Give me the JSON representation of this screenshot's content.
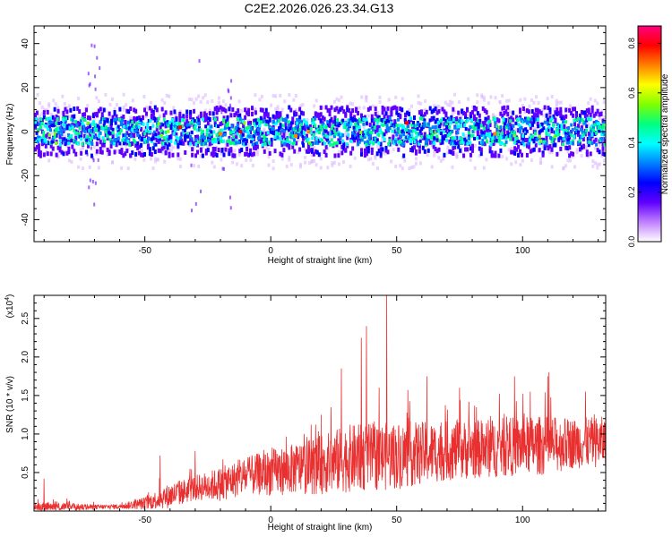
{
  "title": "C2E2.2026.026.23.34.G13",
  "chart_data": [
    {
      "type": "heatmap",
      "xlabel": "Height of straight line (km)",
      "ylabel": "Frequency (Hz)",
      "xlim": [
        -94,
        133
      ],
      "ylim": [
        -50,
        48
      ],
      "xticks": [
        -50,
        0,
        50,
        100
      ],
      "yticks": [
        -40,
        -20,
        0,
        20,
        40
      ],
      "colorbar": {
        "label": "Normalized spectral amplitude",
        "range": [
          0.0,
          0.87
        ],
        "ticks": [
          "0.0",
          "0.2",
          "0.4",
          "0.6",
          "0.8"
        ],
        "colors": [
          "#ffffff",
          "#c080ff",
          "#6000ff",
          "#0000ff",
          "#0080ff",
          "#00ffff",
          "#00ff80",
          "#80ff00",
          "#ffff00",
          "#ff8000",
          "#ff0000",
          "#ff0080"
        ]
      },
      "band": {
        "center_hz": 0,
        "core_halfwidth_hz": 6,
        "outer_halfwidth_hz": 13,
        "peaks": [
          {
            "x": -36,
            "y": 2,
            "value": 0.8
          },
          {
            "x": -20,
            "y": -1,
            "value": 0.7
          },
          {
            "x": -12,
            "y": 0,
            "value": 0.8
          },
          {
            "x": 10,
            "y": -2,
            "value": 0.7
          },
          {
            "x": 15,
            "y": 0,
            "value": 0.75
          },
          {
            "x": 54,
            "y": 4,
            "value": 0.8
          },
          {
            "x": 89,
            "y": -1,
            "value": 0.7
          }
        ]
      }
    },
    {
      "type": "line",
      "xlabel": "Height of straight line (km)",
      "ylabel": "SNR (10 * v/v)",
      "yscale_label": "(x10",
      "yscale_exp": "4",
      "xlim": [
        -94,
        133
      ],
      "ylim": [
        0,
        2.8
      ],
      "xticks": [
        -50,
        0,
        50,
        100
      ],
      "yticks": [
        "0.5",
        "1.0",
        "1.5",
        "2.0",
        "2.5"
      ],
      "color": "#e83030",
      "series": [
        {
          "x": [
            -94,
            -80,
            -70,
            -60,
            -50,
            -40,
            -30,
            -20,
            -10,
            0,
            10,
            20,
            30,
            40,
            50,
            60,
            70,
            80,
            90,
            100,
            110,
            120,
            133
          ],
          "baseline": [
            0.05,
            0.05,
            0.05,
            0.06,
            0.1,
            0.2,
            0.3,
            0.35,
            0.45,
            0.5,
            0.55,
            0.6,
            0.68,
            0.7,
            0.72,
            0.75,
            0.78,
            0.8,
            0.82,
            0.85,
            0.85,
            0.88,
            0.9
          ],
          "spread": [
            0.12,
            0.1,
            0.06,
            0.06,
            0.15,
            0.3,
            0.3,
            0.4,
            0.45,
            0.55,
            0.6,
            0.7,
            0.8,
            0.8,
            0.8,
            0.75,
            0.7,
            0.7,
            0.7,
            0.7,
            0.7,
            0.6,
            0.6
          ],
          "spikes": [
            {
              "x": -90,
              "y": 0.42
            },
            {
              "x": -44,
              "y": 0.72
            },
            {
              "x": -30,
              "y": 0.78
            },
            {
              "x": 20,
              "y": 1.25
            },
            {
              "x": 28,
              "y": 1.85
            },
            {
              "x": 36,
              "y": 2.25
            },
            {
              "x": 38,
              "y": 2.4
            },
            {
              "x": 46,
              "y": 2.8
            },
            {
              "x": 62,
              "y": 1.75
            },
            {
              "x": 75,
              "y": 1.6
            },
            {
              "x": 103,
              "y": 1.55
            },
            {
              "x": 110,
              "y": 1.75
            },
            {
              "x": 125,
              "y": 1.55
            }
          ]
        }
      ]
    }
  ]
}
